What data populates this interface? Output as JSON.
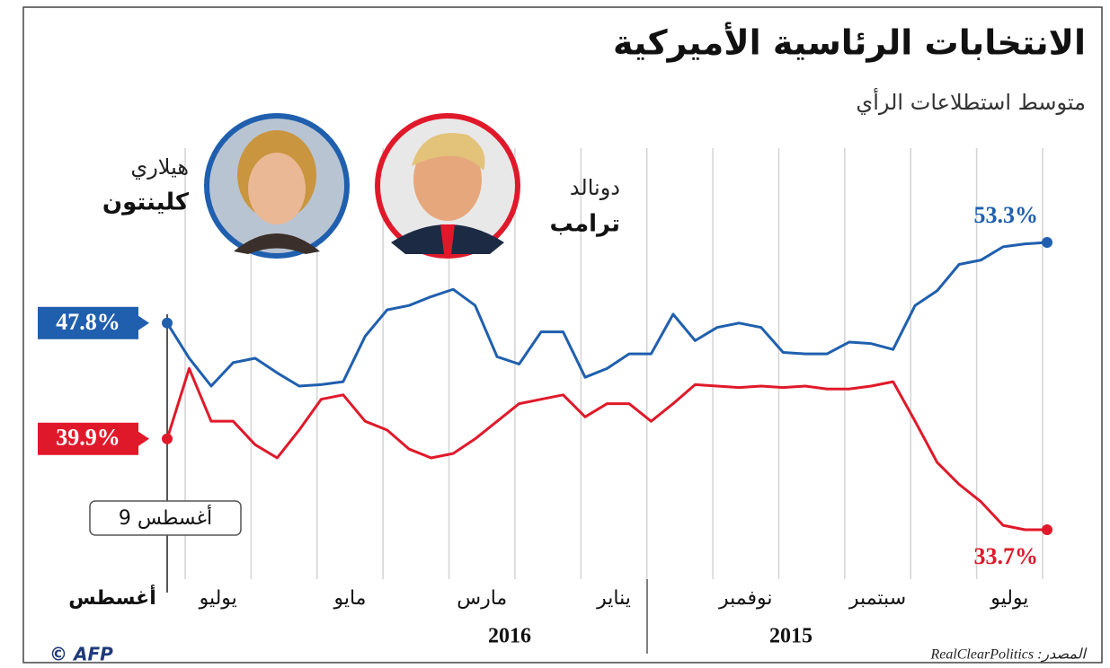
{
  "chart_data": {
    "type": "line",
    "title": "الانتخابات الرئاسية الأميركية",
    "subtitle": "متوسط استطلاعات الرأي",
    "month_labels": [
      "يوليو",
      null,
      "سبتمبر",
      null,
      "نوفمبر",
      null,
      "يناير",
      null,
      "مارس",
      null,
      "مايو",
      null,
      "يوليو"
    ],
    "end_label": "أغسطس",
    "years": [
      "2015",
      "2016"
    ],
    "annotation": "9 أغسطس",
    "source": "المصدر: RealClearPolitics",
    "credit": "© AFP",
    "series": [
      {
        "name": [
          "هيلاري",
          "كلينتون"
        ],
        "color": "#1f5fae",
        "values": [
          53.3,
          53.2,
          53.0,
          52.1,
          51.8,
          50.0,
          49.0,
          46.0,
          46.4,
          46.5,
          45.7,
          45.7,
          45.8,
          47.5,
          47.8,
          47.5,
          46.6,
          48.4,
          45.7,
          45.7,
          44.7,
          44.1,
          47.2,
          47.2,
          45.0,
          45.5,
          49.0,
          50.1,
          49.6,
          49.0,
          48.7,
          46.9,
          43.8,
          43.6,
          43.5,
          44.4,
          45.4,
          45.1,
          43.5,
          45.4,
          47.8
        ],
        "value_labels": [
          "53.3%",
          null,
          null,
          null,
          null,
          null,
          null,
          null,
          null,
          null,
          null,
          null,
          null,
          null,
          null,
          null,
          null,
          null,
          null,
          null,
          null,
          null,
          null,
          null,
          null,
          null,
          null,
          null,
          null,
          null,
          null,
          null,
          null,
          null,
          null,
          null,
          null,
          null,
          null,
          null,
          "47.8%"
        ]
      },
      {
        "name": [
          "دونالد",
          "ترامب"
        ],
        "color": "#e0192a",
        "values": [
          33.7,
          33.7,
          34.0,
          35.6,
          36.8,
          38.3,
          41.1,
          43.8,
          43.5,
          43.3,
          43.3,
          43.5,
          43.4,
          43.5,
          43.4,
          43.5,
          43.6,
          42.3,
          41.1,
          42.3,
          42.3,
          41.4,
          42.9,
          42.6,
          42.3,
          41.1,
          39.9,
          38.9,
          38.6,
          39.2,
          40.5,
          41.1,
          42.9,
          42.6,
          40.5,
          38.6,
          39.5,
          41.1,
          41.1,
          44.7,
          39.9
        ],
        "value_labels": [
          "33.7%",
          null,
          null,
          null,
          null,
          null,
          null,
          null,
          null,
          null,
          null,
          null,
          null,
          null,
          null,
          null,
          null,
          null,
          null,
          null,
          null,
          null,
          null,
          null,
          null,
          null,
          null,
          null,
          null,
          null,
          null,
          null,
          null,
          null,
          null,
          null,
          null,
          null,
          null,
          null,
          "39.9%"
        ]
      }
    ]
  }
}
